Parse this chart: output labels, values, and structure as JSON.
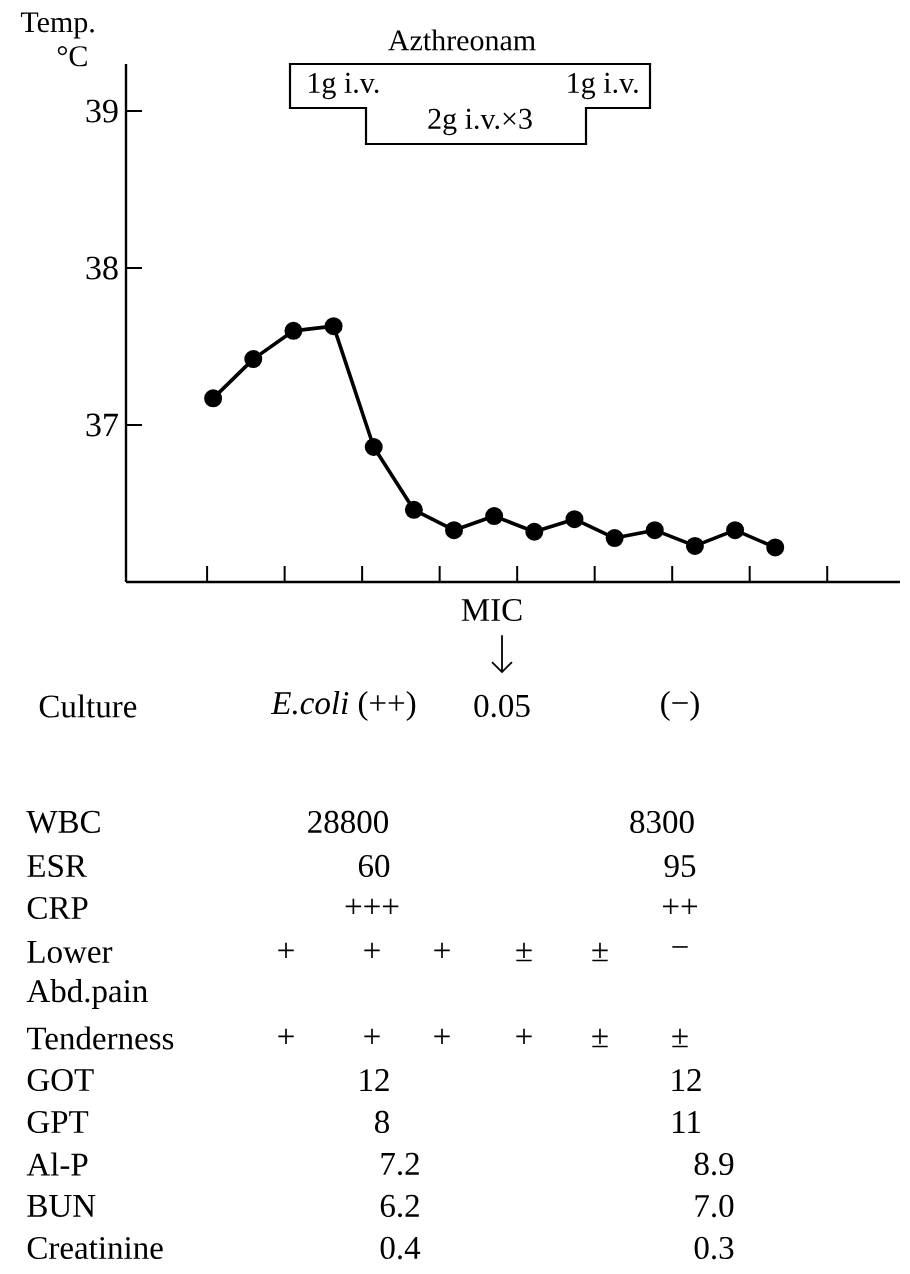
{
  "chart_data": {
    "type": "line",
    "ylabel": "Temp. °C",
    "annotations": [
      "Azthreonam",
      "1g i.v.",
      "1g i.v.",
      "2g i.v.×3",
      "MIC",
      "Culture",
      "*E.coli* (++)",
      "0.05",
      "(−)",
      "WBC",
      "28800",
      "8300",
      "ESR",
      "60",
      "95",
      "CRP",
      "+++",
      "++",
      "Lower",
      "+",
      "+",
      "+",
      "±",
      "±",
      "−",
      "Abd.pain",
      "Tenderness",
      "+",
      "+",
      "+",
      "+",
      "±",
      "±",
      "GOT",
      "12",
      "12",
      "GPT",
      "8",
      "11",
      "Al-P",
      "7.2",
      "8.9",
      "BUN",
      "6.2",
      "7.0",
      "Creatinine",
      "0.4",
      "0.3"
    ],
    "categories": [
      null,
      null,
      null,
      null,
      null,
      null,
      null,
      null,
      null,
      null,
      null,
      null,
      null,
      null,
      null
    ],
    "series": [
      {
        "color": "#000000",
        "values": [
          37.17,
          37.42,
          37.6,
          37.63,
          36.86,
          36.46,
          36.33,
          36.42,
          36.32,
          36.4,
          36.28,
          36.33,
          36.23,
          36.33,
          36.22
        ]
      }
    ],
    "ylim": [
      36,
      39.3
    ],
    "yticks": [
      37,
      38,
      39
    ],
    "tick_labels": "y",
    "marker": "circle",
    "line_style": "solid"
  }
}
